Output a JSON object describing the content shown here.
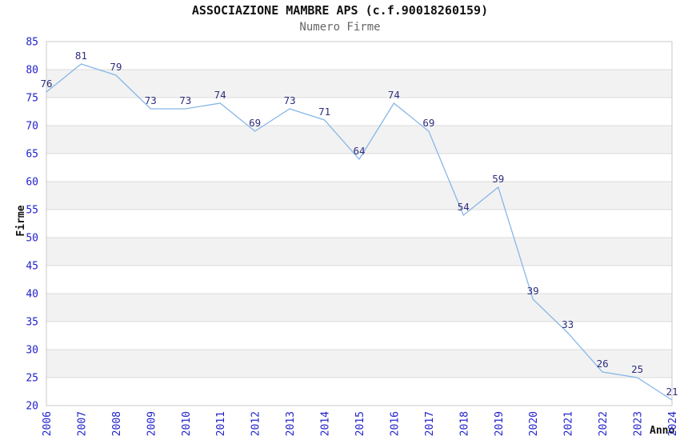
{
  "header": {
    "title": "ASSOCIAZIONE MAMBRE APS (c.f.90018260159)",
    "subtitle": "Numero Firme"
  },
  "chart_data": {
    "type": "line",
    "title": "ASSOCIAZIONE MAMBRE APS (c.f.90018260159)",
    "subtitle": "Numero Firme",
    "xlabel": "Anno",
    "ylabel": "Firme",
    "categories": [
      "2006",
      "2007",
      "2008",
      "2009",
      "2010",
      "2011",
      "2012",
      "2013",
      "2014",
      "2015",
      "2016",
      "2017",
      "2018",
      "2019",
      "2020",
      "2021",
      "2022",
      "2023",
      "2024"
    ],
    "values": [
      76,
      81,
      79,
      73,
      73,
      74,
      69,
      73,
      71,
      64,
      74,
      69,
      54,
      59,
      39,
      33,
      26,
      25,
      21
    ],
    "ylim": [
      20,
      85
    ],
    "ytick_step": 5,
    "grid": "horizontal-only",
    "alternating_bands": true,
    "legend": "none",
    "point_labels_visible": true,
    "colors": {
      "line": "#87b7e7",
      "value_label": "#2e2e7e",
      "tick_label": "#2222cc",
      "band": "#f2f2f2",
      "band_alt": "#ffffff",
      "gridline": "#dcdcdc",
      "border": "#c9c9c9",
      "title": "#111111",
      "subtitle": "#666666"
    }
  }
}
